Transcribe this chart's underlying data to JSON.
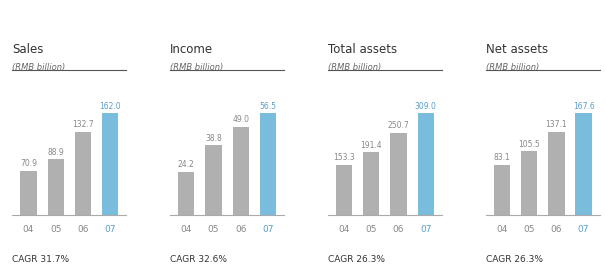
{
  "charts": [
    {
      "title": "Sales",
      "subtitle": "(RMB billion)",
      "values": [
        70.9,
        88.9,
        132.7,
        162.0
      ],
      "cagr": "CAGR 31.7%",
      "years": [
        "04",
        "05",
        "06",
        "07"
      ]
    },
    {
      "title": "Income",
      "subtitle": "(RMB billion)",
      "values": [
        24.2,
        38.8,
        49.0,
        56.5
      ],
      "cagr": "CAGR 32.6%",
      "years": [
        "04",
        "05",
        "06",
        "07"
      ]
    },
    {
      "title": "Total assets",
      "subtitle": "(RMB billion)",
      "values": [
        153.3,
        191.4,
        250.7,
        309.0
      ],
      "cagr": "CAGR 26.3%",
      "years": [
        "04",
        "05",
        "06",
        "07"
      ]
    },
    {
      "title": "Net assets",
      "subtitle": "(RMB billion)",
      "values": [
        83.1,
        105.5,
        137.1,
        167.6
      ],
      "cagr": "CAGR 26.3%",
      "years": [
        "04",
        "05",
        "06",
        "07"
      ]
    }
  ],
  "bar_color_gray": "#b0b0b0",
  "bar_color_blue": "#7abcdb",
  "title_color": "#333333",
  "subtitle_color": "#666666",
  "label_color_gray": "#888888",
  "label_color_blue": "#5b9ec9",
  "cagr_color": "#333333",
  "year_color_blue": "#5b9ec9",
  "year_color_gray": "#888888",
  "background_color": "#ffffff",
  "fig_width": 6.06,
  "fig_height": 2.76,
  "dpi": 100
}
